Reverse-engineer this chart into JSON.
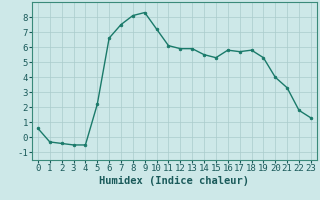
{
  "x": [
    0,
    1,
    2,
    3,
    4,
    5,
    6,
    7,
    8,
    9,
    10,
    11,
    12,
    13,
    14,
    15,
    16,
    17,
    18,
    19,
    20,
    21,
    22,
    23
  ],
  "y": [
    0.6,
    -0.3,
    -0.4,
    -0.5,
    -0.5,
    2.2,
    6.6,
    7.5,
    8.1,
    8.3,
    7.2,
    6.1,
    5.9,
    5.9,
    5.5,
    5.3,
    5.8,
    5.7,
    5.8,
    5.3,
    4.0,
    3.3,
    1.8,
    1.3
  ],
  "line_color": "#1a7a6a",
  "marker": "o",
  "marker_size": 2.0,
  "bg_color": "#cde8e8",
  "grid_color": "#aacccc",
  "xlabel": "Humidex (Indice chaleur)",
  "xlim": [
    -0.5,
    23.5
  ],
  "ylim": [
    -1.5,
    9.0
  ],
  "yticks": [
    -1,
    0,
    1,
    2,
    3,
    4,
    5,
    6,
    7,
    8
  ],
  "xticks": [
    0,
    1,
    2,
    3,
    4,
    5,
    6,
    7,
    8,
    9,
    10,
    11,
    12,
    13,
    14,
    15,
    16,
    17,
    18,
    19,
    20,
    21,
    22,
    23
  ],
  "tick_fontsize": 6.5,
  "xlabel_fontsize": 7.5,
  "tick_color": "#1a5a5a",
  "spine_color": "#3a8a7a"
}
